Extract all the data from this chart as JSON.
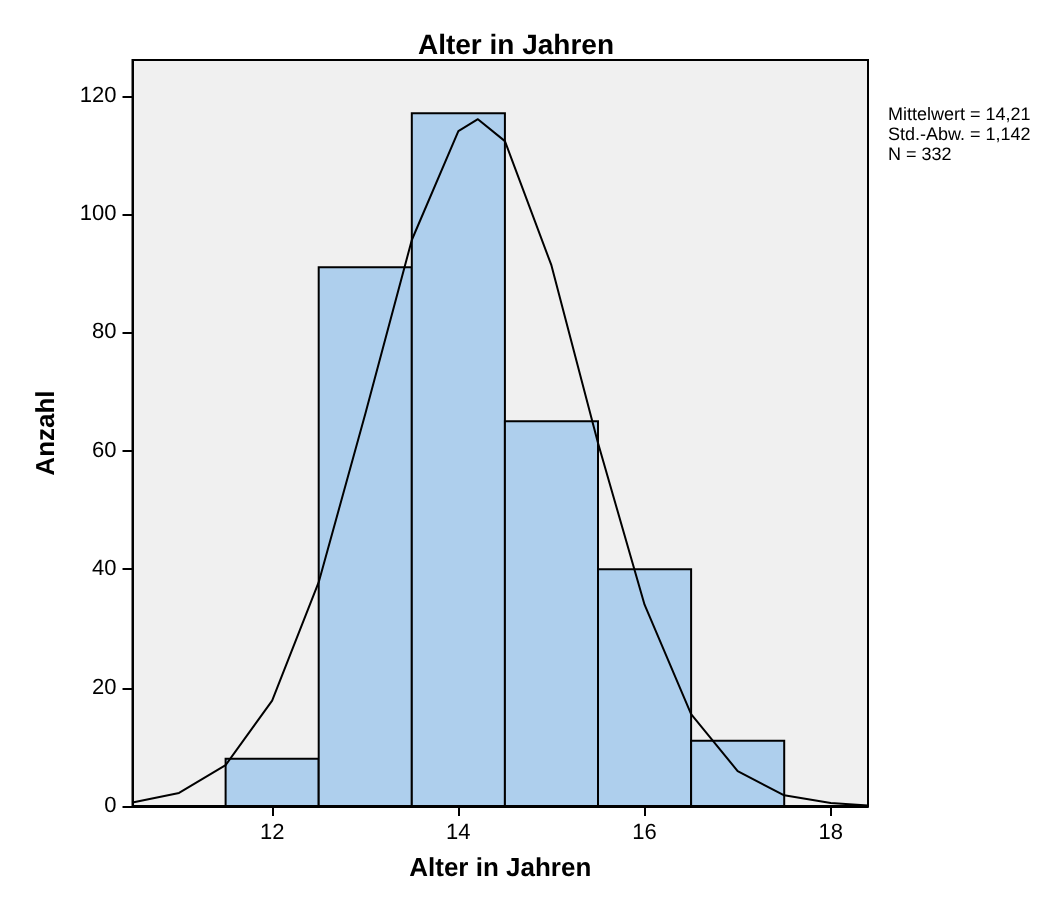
{
  "chart_data": {
    "type": "histogram",
    "title": "Alter in Jahren",
    "xlabel": "Alter in Jahren",
    "ylabel": "Anzahl",
    "bins": [
      11.5,
      12.5,
      13.5,
      14.5,
      15.5,
      16.5,
      17.5
    ],
    "values": [
      8,
      91,
      117,
      65,
      40,
      11
    ],
    "color": "#aecfed",
    "series": [
      {
        "type": "line",
        "color": "#000000",
        "x": [
          10.5,
          11,
          11.5,
          12,
          12.5,
          13,
          13.5,
          14,
          14.21,
          14.5,
          15,
          15.5,
          16,
          16.5,
          17,
          17.5,
          18,
          18.4
        ],
        "values": [
          0.6,
          2.2,
          6.9,
          17.8,
          37.8,
          66.2,
          95.6,
          114,
          116,
          112.3,
          91.3,
          61.3,
          34,
          15.5,
          5.9,
          1.8,
          0.5,
          0.1
        ]
      }
    ],
    "xlim": [
      10.5,
      18.4
    ],
    "xticks": [
      12,
      14,
      16,
      18
    ],
    "ylim": [
      0,
      126
    ],
    "yticks": [
      0,
      20,
      40,
      60,
      80,
      100,
      120
    ],
    "annotations": [
      "Mittelwert = 14,21",
      "Std.-Abw. = 1,142",
      "N = 332"
    ],
    "grid": false,
    "marker": "none"
  }
}
